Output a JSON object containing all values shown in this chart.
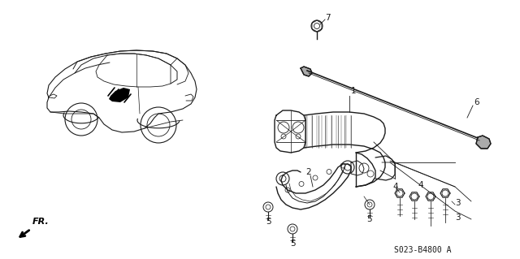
{
  "bg_color": "#ffffff",
  "line_color": "#1a1a1a",
  "diagram_code": "S023-B4800 A",
  "label_fontsize": 7.5,
  "code_fontsize": 7
}
